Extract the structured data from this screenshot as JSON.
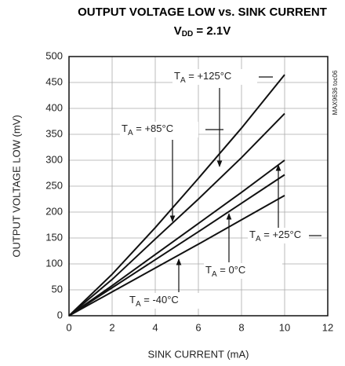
{
  "chart_data": {
    "type": "line",
    "title": "OUTPUT VOLTAGE LOW vs. SINK CURRENT",
    "subtitle": {
      "main": "V",
      "sub": "DD",
      "rest": " = 2.1V"
    },
    "x_label": "SINK CURRENT (mA)",
    "y_label": "OUTPUT VOLTAGE LOW (mV)",
    "side_note": "MAX9636 toc06",
    "x": [
      0,
      2,
      4,
      6,
      8,
      10
    ],
    "series": [
      {
        "label": {
          "main": "T",
          "sub": "A",
          "rest": " = +125°C"
        },
        "color": "#111111",
        "values": [
          0,
          80,
          170,
          265,
          362,
          465
        ]
      },
      {
        "label": {
          "main": "T",
          "sub": "A",
          "rest": " = +85°C"
        },
        "color": "#111111",
        "values": [
          0,
          70,
          148,
          225,
          305,
          390
        ]
      },
      {
        "label": {
          "main": "T",
          "sub": "A",
          "rest": " = +25°C"
        },
        "color": "#111111",
        "values": [
          0,
          58,
          118,
          178,
          238,
          300
        ]
      },
      {
        "label": {
          "main": "T",
          "sub": "A",
          "rest": " = 0°C"
        },
        "color": "#111111",
        "values": [
          0,
          54,
          108,
          162,
          217,
          272
        ]
      },
      {
        "label": {
          "main": "T",
          "sub": "A",
          "rest": " = -40°C"
        },
        "color": "#111111",
        "values": [
          0,
          46,
          92,
          138,
          185,
          232
        ]
      }
    ],
    "xlim": [
      0,
      12
    ],
    "xticks": [
      0,
      2,
      4,
      6,
      8,
      10,
      12
    ],
    "ylim": [
      0,
      500
    ],
    "yticks": [
      0,
      50,
      100,
      150,
      200,
      250,
      300,
      350,
      400,
      450,
      500
    ],
    "grid": true
  }
}
